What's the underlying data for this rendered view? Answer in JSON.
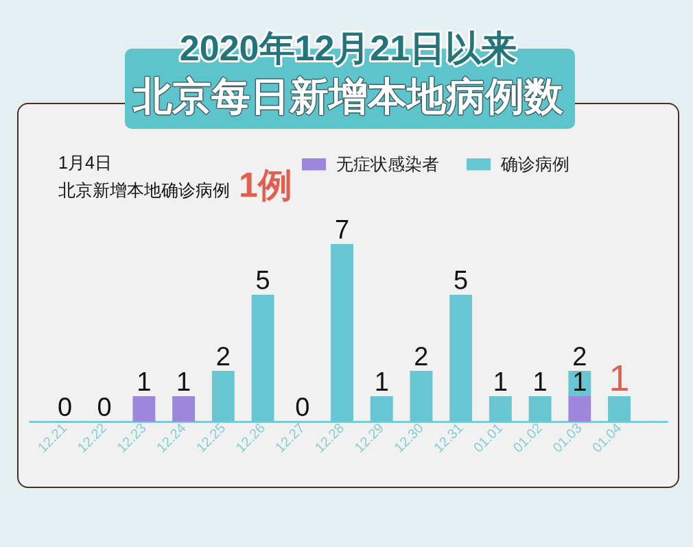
{
  "chart_data": {
    "type": "bar",
    "title": "2020年12月21日以来",
    "subtitle": "北京每日新增本地病例数",
    "annotations": [
      "1月4日",
      "北京新增本地确诊病例",
      "1例"
    ],
    "categories": [
      "12.21",
      "12.22",
      "12.23",
      "12.24",
      "12.25",
      "12.26",
      "12.27",
      "12.28",
      "12.29",
      "12.30",
      "12.31",
      "01.01",
      "01.02",
      "01.03",
      "01.04"
    ],
    "stacked": true,
    "series": [
      {
        "name": "无症状感染者",
        "color": "#9d87dd",
        "values": [
          0,
          0,
          1,
          1,
          0,
          0,
          0,
          0,
          0,
          0,
          0,
          0,
          0,
          1,
          0
        ],
        "value_labels": [
          null,
          null,
          null,
          null,
          null,
          null,
          null,
          null,
          null,
          null,
          null,
          null,
          null,
          "1",
          null
        ]
      },
      {
        "name": "确诊病例",
        "color": "#68c6d2",
        "values": [
          0,
          0,
          0,
          0,
          2,
          5,
          0,
          7,
          1,
          2,
          5,
          1,
          1,
          1,
          1
        ]
      }
    ],
    "totals": [
      "0",
      "0",
      "1",
      "1",
      "2",
      "5",
      "0",
      "7",
      "1",
      "2",
      "5",
      "1",
      "1",
      "2",
      "1"
    ],
    "legend": "top right"
  }
}
